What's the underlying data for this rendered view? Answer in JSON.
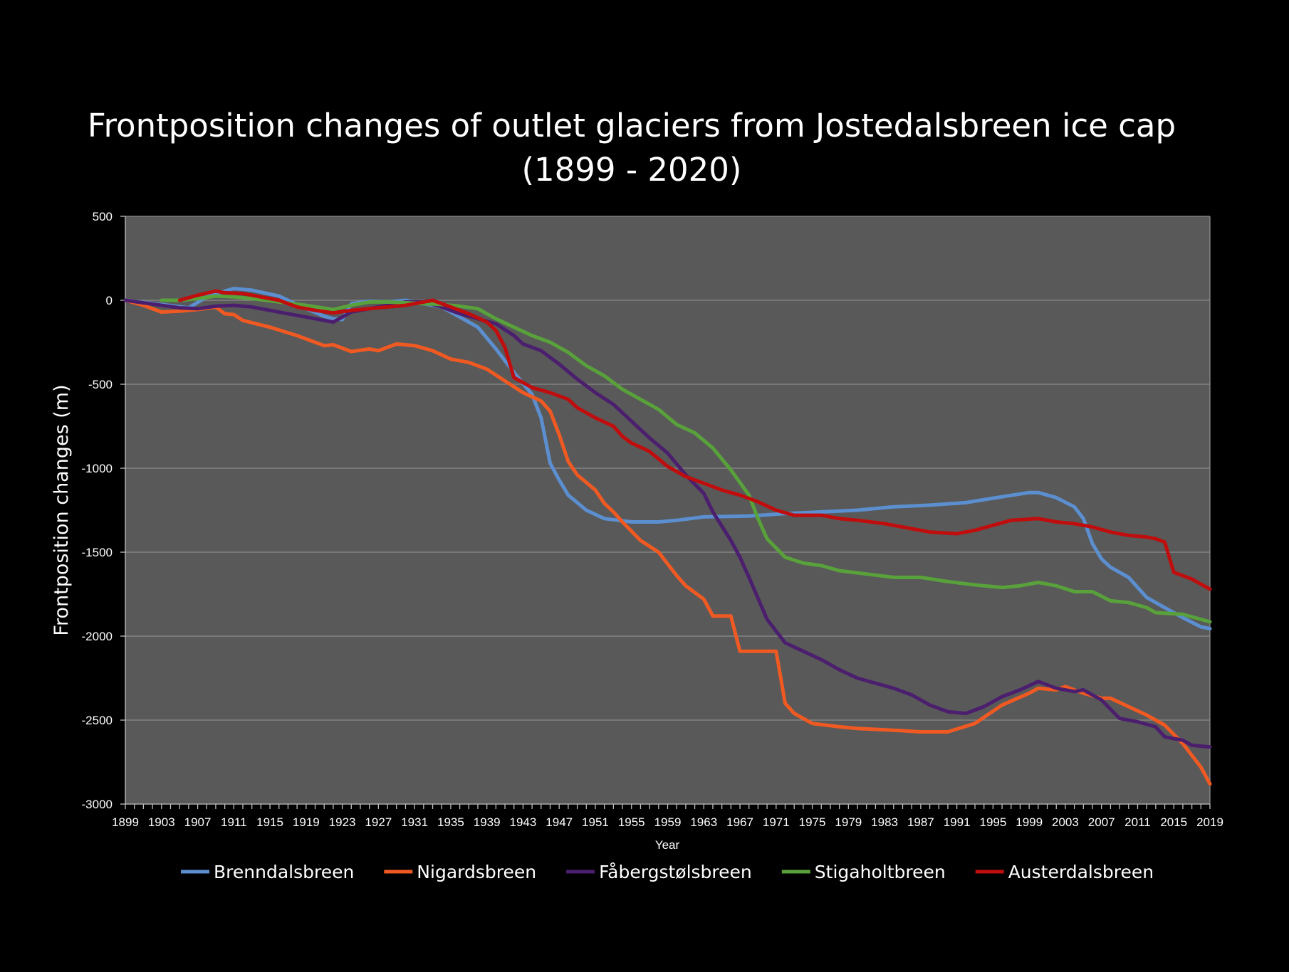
{
  "chart_data": {
    "type": "line",
    "title": [
      "Frontposition changes of outlet glaciers from Jostedalsbreen ice cap",
      "(1899 - 2020)"
    ],
    "xlabel": "Year",
    "ylabel": "Frontposition changes (m)",
    "xlim": [
      1899,
      2019
    ],
    "ylim": [
      -3000,
      500
    ],
    "x_ticks": [
      "1899",
      "1903",
      "1907",
      "1911",
      "1915",
      "1919",
      "1923",
      "1927",
      "1931",
      "1935",
      "1939",
      "1943",
      "1947",
      "1951",
      "1955",
      "1959",
      "1963",
      "1967",
      "1971",
      "1975",
      "1979",
      "1983",
      "1987",
      "1991",
      "1995",
      "1999",
      "2003",
      "2007",
      "2011",
      "2015",
      "2019"
    ],
    "y_ticks": [
      "500",
      "0",
      "-500",
      "-1000",
      "-1500",
      "-2000",
      "-2500",
      "-3000"
    ],
    "grid": true,
    "plot_background": "#595959",
    "page_background": "#000000",
    "legend_position": "bottom",
    "series": [
      {
        "name": "Brenndalsbreen",
        "color": "#5b8fd0",
        "points": [
          [
            1899,
            0
          ],
          [
            1903,
            -25
          ],
          [
            1906,
            -45
          ],
          [
            1908,
            20
          ],
          [
            1910,
            55
          ],
          [
            1911,
            70
          ],
          [
            1913,
            60
          ],
          [
            1916,
            25
          ],
          [
            1919,
            -50
          ],
          [
            1921,
            -95
          ],
          [
            1922,
            -110
          ],
          [
            1923,
            -115
          ],
          [
            1924,
            -20
          ],
          [
            1926,
            -5
          ],
          [
            1928,
            -10
          ],
          [
            1930,
            0
          ],
          [
            1932,
            -20
          ],
          [
            1934,
            -40
          ],
          [
            1936,
            -100
          ],
          [
            1938,
            -160
          ],
          [
            1940,
            -290
          ],
          [
            1942,
            -430
          ],
          [
            1944,
            -560
          ],
          [
            1945,
            -700
          ],
          [
            1946,
            -970
          ],
          [
            1947,
            -1070
          ],
          [
            1948,
            -1160
          ],
          [
            1950,
            -1250
          ],
          [
            1952,
            -1300
          ],
          [
            1955,
            -1320
          ],
          [
            1958,
            -1320
          ],
          [
            1960,
            -1310
          ],
          [
            1963,
            -1290
          ],
          [
            1968,
            -1285
          ],
          [
            1972,
            -1270
          ],
          [
            1976,
            -1260
          ],
          [
            1980,
            -1250
          ],
          [
            1984,
            -1230
          ],
          [
            1988,
            -1220
          ],
          [
            1992,
            -1205
          ],
          [
            1996,
            -1170
          ],
          [
            1999,
            -1145
          ],
          [
            2000,
            -1145
          ],
          [
            2002,
            -1175
          ],
          [
            2004,
            -1230
          ],
          [
            2005,
            -1300
          ],
          [
            2006,
            -1450
          ],
          [
            2007,
            -1540
          ],
          [
            2008,
            -1590
          ],
          [
            2010,
            -1650
          ],
          [
            2012,
            -1770
          ],
          [
            2014,
            -1830
          ],
          [
            2016,
            -1890
          ],
          [
            2018,
            -1945
          ],
          [
            2019,
            -1955
          ]
        ]
      },
      {
        "name": "Nigardsbreen",
        "color": "#f05a22",
        "points": [
          [
            1899,
            0
          ],
          [
            1901,
            -30
          ],
          [
            1903,
            -70
          ],
          [
            1905,
            -65
          ],
          [
            1907,
            -55
          ],
          [
            1909,
            -40
          ],
          [
            1910,
            -80
          ],
          [
            1911,
            -85
          ],
          [
            1912,
            -120
          ],
          [
            1915,
            -160
          ],
          [
            1918,
            -210
          ],
          [
            1921,
            -270
          ],
          [
            1922,
            -265
          ],
          [
            1924,
            -305
          ],
          [
            1926,
            -290
          ],
          [
            1927,
            -300
          ],
          [
            1929,
            -260
          ],
          [
            1931,
            -270
          ],
          [
            1933,
            -300
          ],
          [
            1935,
            -350
          ],
          [
            1937,
            -370
          ],
          [
            1939,
            -410
          ],
          [
            1941,
            -480
          ],
          [
            1943,
            -550
          ],
          [
            1945,
            -600
          ],
          [
            1946,
            -660
          ],
          [
            1947,
            -800
          ],
          [
            1948,
            -960
          ],
          [
            1949,
            -1040
          ],
          [
            1951,
            -1130
          ],
          [
            1952,
            -1210
          ],
          [
            1953,
            -1260
          ],
          [
            1954,
            -1320
          ],
          [
            1956,
            -1430
          ],
          [
            1958,
            -1500
          ],
          [
            1960,
            -1640
          ],
          [
            1961,
            -1700
          ],
          [
            1963,
            -1780
          ],
          [
            1964,
            -1880
          ],
          [
            1966,
            -1880
          ],
          [
            1967,
            -2090
          ],
          [
            1971,
            -2090
          ],
          [
            1972,
            -2400
          ],
          [
            1973,
            -2460
          ],
          [
            1975,
            -2520
          ],
          [
            1978,
            -2540
          ],
          [
            1980,
            -2550
          ],
          [
            1984,
            -2560
          ],
          [
            1987,
            -2570
          ],
          [
            1990,
            -2570
          ],
          [
            1993,
            -2520
          ],
          [
            1996,
            -2410
          ],
          [
            1999,
            -2340
          ],
          [
            2000,
            -2310
          ],
          [
            2002,
            -2320
          ],
          [
            2003,
            -2300
          ],
          [
            2005,
            -2340
          ],
          [
            2007,
            -2370
          ],
          [
            2008,
            -2370
          ],
          [
            2010,
            -2420
          ],
          [
            2012,
            -2470
          ],
          [
            2014,
            -2530
          ],
          [
            2016,
            -2640
          ],
          [
            2018,
            -2780
          ],
          [
            2019,
            -2880
          ]
        ]
      },
      {
        "name": "Fåbergstølsbreen",
        "color": "#4b1f6e",
        "points": [
          [
            1899,
            0
          ],
          [
            1903,
            -30
          ],
          [
            1905,
            -45
          ],
          [
            1907,
            -50
          ],
          [
            1909,
            -35
          ],
          [
            1911,
            -30
          ],
          [
            1913,
            -40
          ],
          [
            1915,
            -60
          ],
          [
            1917,
            -80
          ],
          [
            1919,
            -100
          ],
          [
            1921,
            -120
          ],
          [
            1922,
            -130
          ],
          [
            1924,
            -70
          ],
          [
            1926,
            -50
          ],
          [
            1928,
            -30
          ],
          [
            1930,
            -10
          ],
          [
            1932,
            -10
          ],
          [
            1934,
            -40
          ],
          [
            1936,
            -80
          ],
          [
            1938,
            -110
          ],
          [
            1940,
            -140
          ],
          [
            1942,
            -210
          ],
          [
            1943,
            -260
          ],
          [
            1945,
            -300
          ],
          [
            1947,
            -380
          ],
          [
            1949,
            -470
          ],
          [
            1951,
            -550
          ],
          [
            1953,
            -620
          ],
          [
            1955,
            -720
          ],
          [
            1957,
            -820
          ],
          [
            1959,
            -910
          ],
          [
            1961,
            -1040
          ],
          [
            1963,
            -1150
          ],
          [
            1964,
            -1260
          ],
          [
            1966,
            -1430
          ],
          [
            1967,
            -1530
          ],
          [
            1968,
            -1650
          ],
          [
            1970,
            -1900
          ],
          [
            1972,
            -2040
          ],
          [
            1974,
            -2090
          ],
          [
            1976,
            -2140
          ],
          [
            1978,
            -2200
          ],
          [
            1980,
            -2250
          ],
          [
            1982,
            -2280
          ],
          [
            1984,
            -2310
          ],
          [
            1986,
            -2350
          ],
          [
            1988,
            -2410
          ],
          [
            1990,
            -2450
          ],
          [
            1992,
            -2460
          ],
          [
            1994,
            -2420
          ],
          [
            1996,
            -2360
          ],
          [
            1998,
            -2320
          ],
          [
            2000,
            -2270
          ],
          [
            2002,
            -2310
          ],
          [
            2004,
            -2330
          ],
          [
            2005,
            -2320
          ],
          [
            2007,
            -2380
          ],
          [
            2009,
            -2490
          ],
          [
            2011,
            -2510
          ],
          [
            2013,
            -2540
          ],
          [
            2014,
            -2600
          ],
          [
            2016,
            -2620
          ],
          [
            2017,
            -2650
          ],
          [
            2019,
            -2660
          ]
        ]
      },
      {
        "name": "Stigaholtbreen",
        "color": "#59a13b",
        "points": [
          [
            1903,
            0
          ],
          [
            1905,
            0
          ],
          [
            1907,
            10
          ],
          [
            1909,
            25
          ],
          [
            1911,
            20
          ],
          [
            1913,
            10
          ],
          [
            1916,
            -10
          ],
          [
            1919,
            -30
          ],
          [
            1922,
            -55
          ],
          [
            1924,
            -30
          ],
          [
            1926,
            -10
          ],
          [
            1928,
            -10
          ],
          [
            1930,
            -15
          ],
          [
            1932,
            -20
          ],
          [
            1934,
            -25
          ],
          [
            1936,
            -35
          ],
          [
            1938,
            -50
          ],
          [
            1940,
            -110
          ],
          [
            1942,
            -160
          ],
          [
            1944,
            -210
          ],
          [
            1946,
            -250
          ],
          [
            1948,
            -310
          ],
          [
            1950,
            -390
          ],
          [
            1952,
            -450
          ],
          [
            1954,
            -530
          ],
          [
            1956,
            -590
          ],
          [
            1958,
            -650
          ],
          [
            1960,
            -740
          ],
          [
            1962,
            -790
          ],
          [
            1964,
            -880
          ],
          [
            1966,
            -1010
          ],
          [
            1968,
            -1160
          ],
          [
            1969,
            -1300
          ],
          [
            1970,
            -1420
          ],
          [
            1972,
            -1530
          ],
          [
            1974,
            -1565
          ],
          [
            1976,
            -1580
          ],
          [
            1978,
            -1610
          ],
          [
            1981,
            -1630
          ],
          [
            1984,
            -1650
          ],
          [
            1987,
            -1650
          ],
          [
            1990,
            -1675
          ],
          [
            1993,
            -1695
          ],
          [
            1996,
            -1710
          ],
          [
            1998,
            -1700
          ],
          [
            2000,
            -1680
          ],
          [
            2002,
            -1700
          ],
          [
            2004,
            -1735
          ],
          [
            2006,
            -1735
          ],
          [
            2008,
            -1790
          ],
          [
            2010,
            -1800
          ],
          [
            2012,
            -1830
          ],
          [
            2013,
            -1860
          ],
          [
            2016,
            -1870
          ],
          [
            2018,
            -1900
          ],
          [
            2019,
            -1915
          ]
        ]
      },
      {
        "name": "Austerdalsbreen",
        "color": "#c00d0d",
        "points": [
          [
            1905,
            0
          ],
          [
            1907,
            30
          ],
          [
            1909,
            55
          ],
          [
            1910,
            45
          ],
          [
            1912,
            40
          ],
          [
            1914,
            20
          ],
          [
            1916,
            0
          ],
          [
            1918,
            -40
          ],
          [
            1920,
            -60
          ],
          [
            1922,
            -75
          ],
          [
            1924,
            -60
          ],
          [
            1926,
            -50
          ],
          [
            1928,
            -40
          ],
          [
            1930,
            -30
          ],
          [
            1932,
            -10
          ],
          [
            1933,
            0
          ],
          [
            1935,
            -40
          ],
          [
            1937,
            -80
          ],
          [
            1939,
            -130
          ],
          [
            1940,
            -180
          ],
          [
            1941,
            -280
          ],
          [
            1942,
            -460
          ],
          [
            1944,
            -520
          ],
          [
            1946,
            -550
          ],
          [
            1948,
            -590
          ],
          [
            1949,
            -640
          ],
          [
            1951,
            -700
          ],
          [
            1953,
            -750
          ],
          [
            1954,
            -810
          ],
          [
            1955,
            -850
          ],
          [
            1957,
            -900
          ],
          [
            1959,
            -990
          ],
          [
            1961,
            -1050
          ],
          [
            1963,
            -1090
          ],
          [
            1965,
            -1130
          ],
          [
            1967,
            -1160
          ],
          [
            1969,
            -1200
          ],
          [
            1971,
            -1250
          ],
          [
            1973,
            -1280
          ],
          [
            1976,
            -1280
          ],
          [
            1978,
            -1300
          ],
          [
            1980,
            -1310
          ],
          [
            1983,
            -1330
          ],
          [
            1986,
            -1360
          ],
          [
            1988,
            -1380
          ],
          [
            1991,
            -1390
          ],
          [
            1993,
            -1370
          ],
          [
            1995,
            -1340
          ],
          [
            1997,
            -1310
          ],
          [
            2000,
            -1300
          ],
          [
            2002,
            -1320
          ],
          [
            2004,
            -1330
          ],
          [
            2006,
            -1350
          ],
          [
            2008,
            -1380
          ],
          [
            2010,
            -1400
          ],
          [
            2012,
            -1410
          ],
          [
            2013,
            -1420
          ],
          [
            2014,
            -1440
          ],
          [
            2015,
            -1620
          ],
          [
            2017,
            -1660
          ],
          [
            2019,
            -1720
          ]
        ]
      }
    ]
  }
}
